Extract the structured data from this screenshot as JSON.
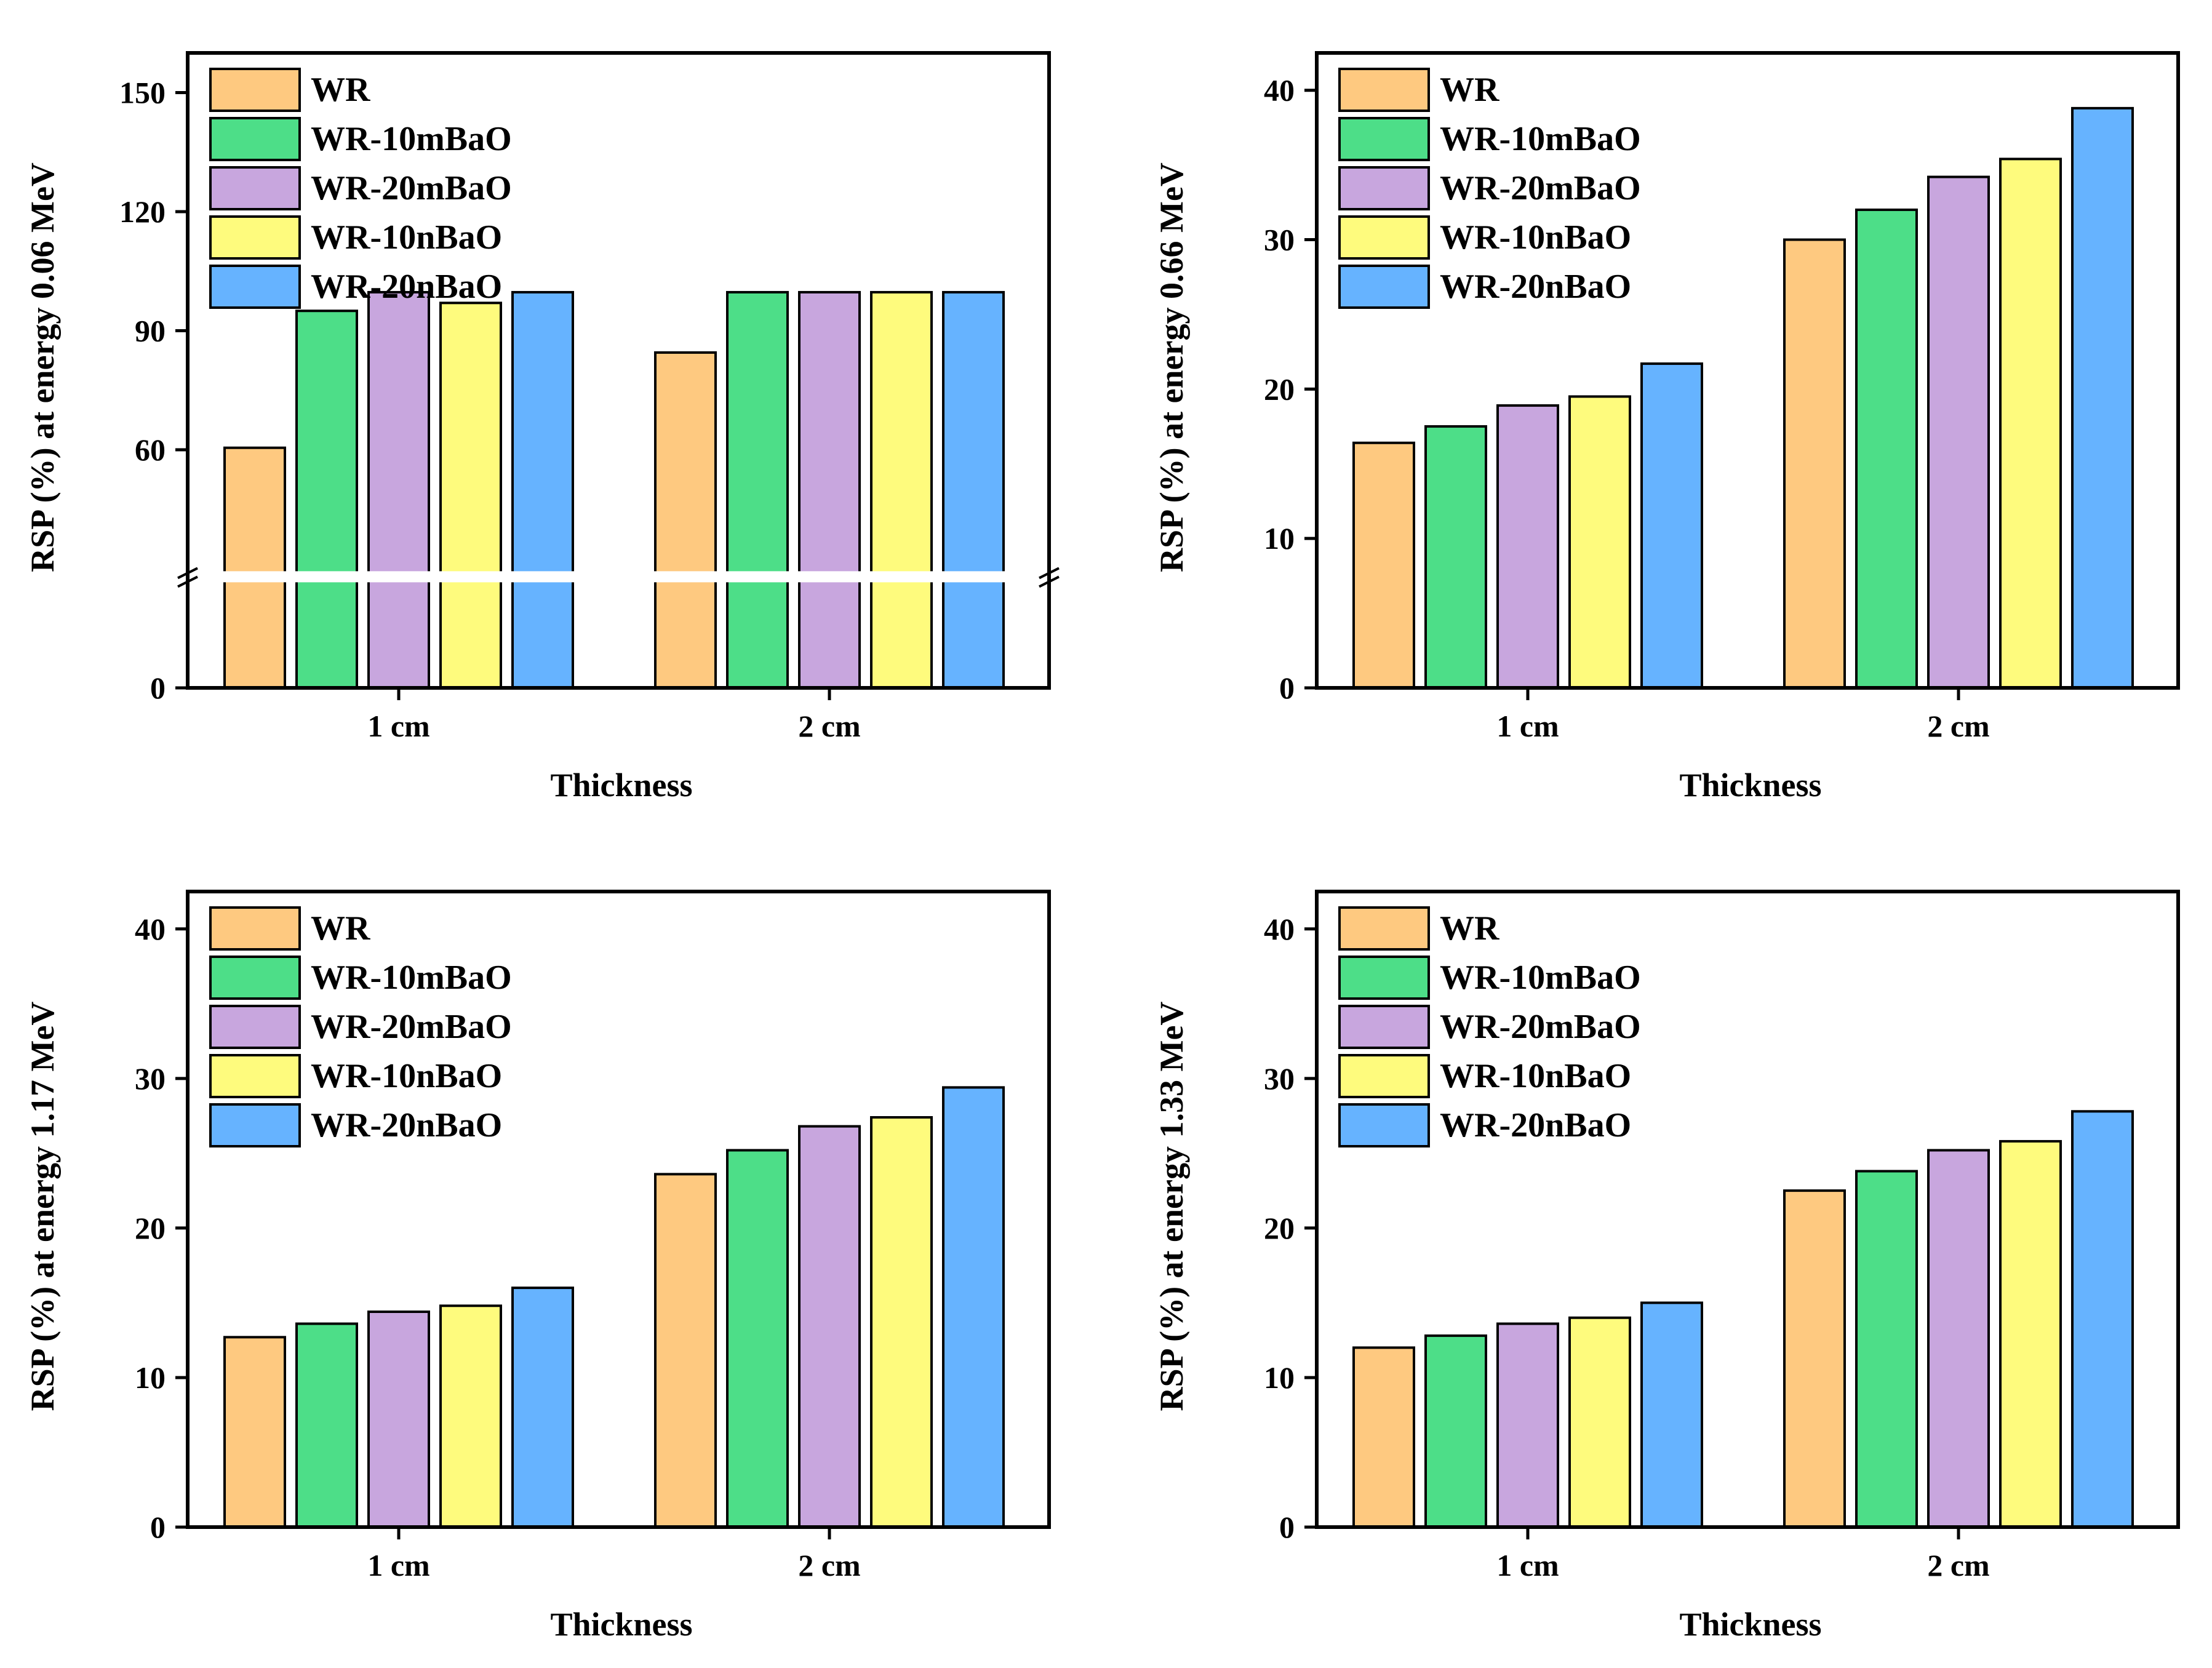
{
  "legend": [
    "WR",
    "WR-10mBaO",
    "WR-20mBaO",
    "WR-10nBaO",
    "WR-20nBaO"
  ],
  "colors": [
    "#FEC980",
    "#4DDE88",
    "#C8A6DE",
    "#FEFB7D",
    "#66B3FF"
  ],
  "chart_data": [
    {
      "type": "bar",
      "xlabel": "Thickness",
      "ylabel": "RSP (%) at energy 0.06 MeV",
      "categories": [
        "1 cm",
        "2 cm"
      ],
      "series": [
        {
          "name": "WR",
          "values": [
            60.5,
            84.5
          ]
        },
        {
          "name": "WR-10mBaO",
          "values": [
            95,
            99.7
          ]
        },
        {
          "name": "WR-20mBaO",
          "values": [
            99.7,
            99.7
          ]
        },
        {
          "name": "WR-10nBaO",
          "values": [
            97,
            99.7
          ]
        },
        {
          "name": "WR-20nBaO",
          "values": [
            99.7,
            99.7
          ]
        }
      ],
      "ylim": [
        0,
        160
      ],
      "yticks": [
        0,
        60,
        90,
        120,
        150
      ],
      "axis_break": [
        0,
        50
      ],
      "grid": false,
      "legend_position": "top-left"
    },
    {
      "type": "bar",
      "xlabel": "Thickness",
      "ylabel": "RSP (%) at energy 0.66 MeV",
      "categories": [
        "1 cm",
        "2 cm"
      ],
      "series": [
        {
          "name": "WR",
          "values": [
            16.4,
            30.0
          ]
        },
        {
          "name": "WR-10mBaO",
          "values": [
            17.5,
            32.0
          ]
        },
        {
          "name": "WR-20mBaO",
          "values": [
            18.9,
            34.2
          ]
        },
        {
          "name": "WR-10nBaO",
          "values": [
            19.5,
            35.4
          ]
        },
        {
          "name": "WR-20nBaO",
          "values": [
            21.7,
            38.8
          ]
        }
      ],
      "ylim": [
        0,
        42.5
      ],
      "yticks": [
        0,
        10,
        20,
        30,
        40
      ],
      "grid": false,
      "legend_position": "top-left"
    },
    {
      "type": "bar",
      "xlabel": "Thickness",
      "ylabel": "RSP (%) at energy 1.17 MeV",
      "categories": [
        "1 cm",
        "2 cm"
      ],
      "series": [
        {
          "name": "WR",
          "values": [
            12.7,
            23.6
          ]
        },
        {
          "name": "WR-10mBaO",
          "values": [
            13.6,
            25.2
          ]
        },
        {
          "name": "WR-20mBaO",
          "values": [
            14.4,
            26.8
          ]
        },
        {
          "name": "WR-10nBaO",
          "values": [
            14.8,
            27.4
          ]
        },
        {
          "name": "WR-20nBaO",
          "values": [
            16.0,
            29.4
          ]
        }
      ],
      "ylim": [
        0,
        42.5
      ],
      "yticks": [
        0,
        10,
        20,
        30,
        40
      ],
      "grid": false,
      "legend_position": "top-left"
    },
    {
      "type": "bar",
      "xlabel": "Thickness",
      "ylabel": "RSP (%) at energy 1.33 MeV",
      "categories": [
        "1 cm",
        "2 cm"
      ],
      "series": [
        {
          "name": "WR",
          "values": [
            12.0,
            22.5
          ]
        },
        {
          "name": "WR-10mBaO",
          "values": [
            12.8,
            23.8
          ]
        },
        {
          "name": "WR-20mBaO",
          "values": [
            13.6,
            25.2
          ]
        },
        {
          "name": "WR-10nBaO",
          "values": [
            14.0,
            25.8
          ]
        },
        {
          "name": "WR-20nBaO",
          "values": [
            15.0,
            27.8
          ]
        }
      ],
      "ylim": [
        0,
        42.5
      ],
      "yticks": [
        0,
        10,
        20,
        30,
        40
      ],
      "grid": false,
      "legend_position": "top-left"
    }
  ]
}
